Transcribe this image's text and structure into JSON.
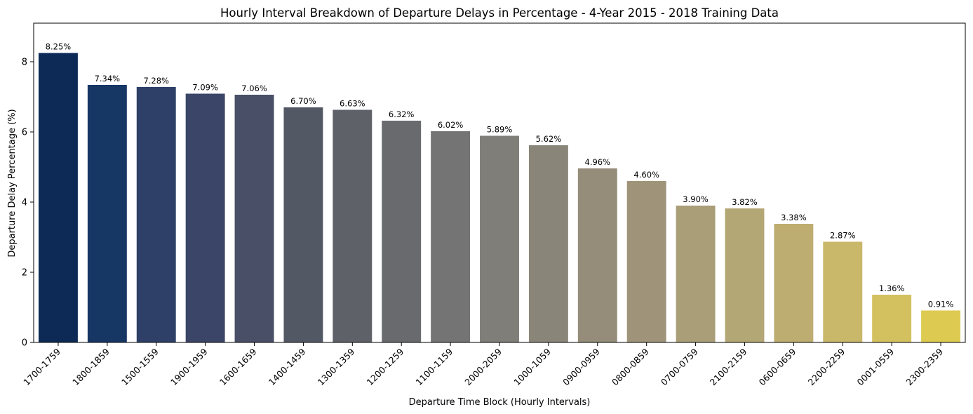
{
  "chart_data": {
    "type": "bar",
    "title": "Hourly Interval Breakdown of Departure Delays in Percentage - 4-Year 2015 - 2018 Training Data",
    "xlabel": "Departure Time Block (Hourly Intervals)",
    "ylabel": "Departure Delay Percentage (%)",
    "categories": [
      "1700-1759",
      "1800-1859",
      "1500-1559",
      "1900-1959",
      "1600-1659",
      "1400-1459",
      "1300-1359",
      "1200-1259",
      "1100-1159",
      "2000-2059",
      "1000-1059",
      "0900-0959",
      "0800-0859",
      "0700-0759",
      "2100-2159",
      "0600-0659",
      "2200-2259",
      "0001-0559",
      "2300-2359"
    ],
    "values": [
      8.25,
      7.34,
      7.28,
      7.09,
      7.06,
      6.7,
      6.63,
      6.32,
      6.02,
      5.89,
      5.62,
      4.96,
      4.6,
      3.9,
      3.82,
      3.38,
      2.87,
      1.36,
      0.91
    ],
    "data_labels": [
      "8.25%",
      "7.34%",
      "7.28%",
      "7.09%",
      "7.06%",
      "6.70%",
      "6.63%",
      "6.32%",
      "6.02%",
      "5.89%",
      "5.62%",
      "4.96%",
      "4.60%",
      "3.90%",
      "3.82%",
      "3.38%",
      "2.87%",
      "1.36%",
      "0.91%"
    ],
    "colors": [
      "#0d2a56",
      "#163664",
      "#2e4068",
      "#3b4567",
      "#484f66",
      "#535865",
      "#5e6168",
      "#696a6e",
      "#747474",
      "#7f7e79",
      "#898679",
      "#958d7a",
      "#9f947a",
      "#a99e78",
      "#b3a775",
      "#bead70",
      "#c9b76a",
      "#d3c160",
      "#ddca51"
    ],
    "yticks": [
      "0",
      "2",
      "4",
      "6",
      "8"
    ],
    "ylim": [
      0,
      9.1
    ],
    "grid": false,
    "legend": "none"
  }
}
